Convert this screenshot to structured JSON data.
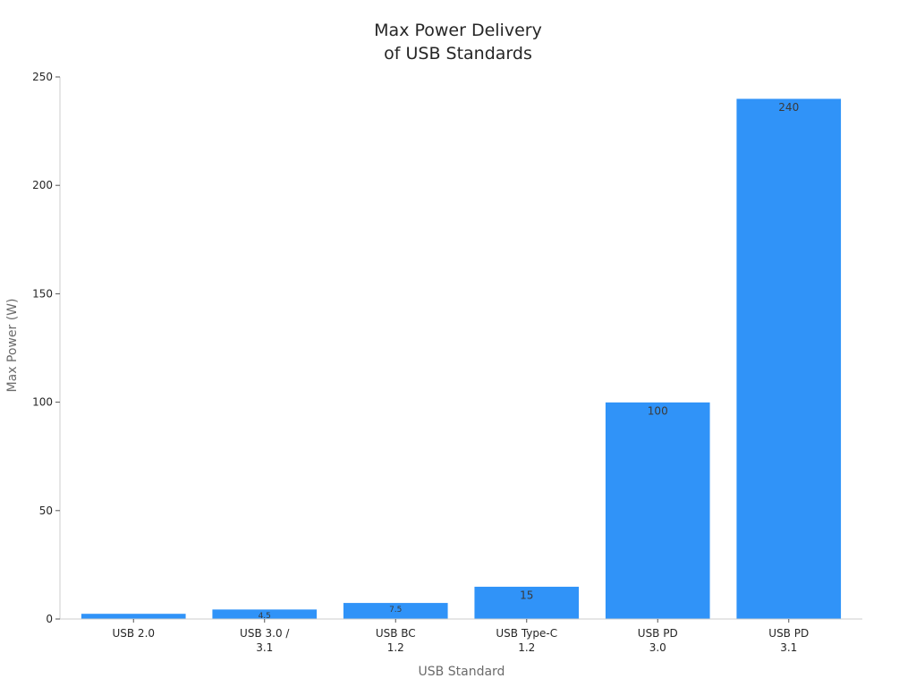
{
  "chart_data": {
    "type": "bar",
    "title": [
      "Max Power Delivery",
      "of USB Standards"
    ],
    "xlabel": "USB Standard",
    "ylabel": "Max Power (W)",
    "ylim": [
      0,
      250
    ],
    "yticks": [
      0,
      50,
      100,
      150,
      200,
      250
    ],
    "categories": [
      [
        "USB 2.0"
      ],
      [
        "USB 3.0 /",
        "3.1"
      ],
      [
        "USB BC",
        "1.2"
      ],
      [
        "USB Type-C",
        "1.2"
      ],
      [
        "USB PD",
        "3.0"
      ],
      [
        "USB PD",
        "3.1"
      ]
    ],
    "values": [
      2.5,
      4.5,
      7.5,
      15,
      100,
      240
    ],
    "data_labels": [
      "",
      "4.5",
      "7.5",
      "15",
      "100",
      "240"
    ],
    "bar_color": "#3093f8",
    "grid": false,
    "legend": "none"
  }
}
